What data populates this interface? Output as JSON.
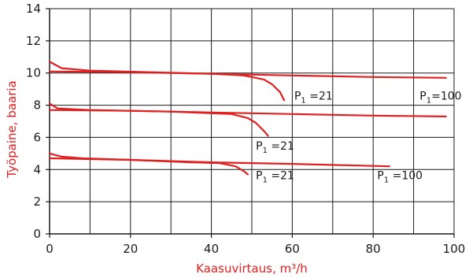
{
  "chart_data": {
    "type": "line",
    "title": "",
    "xlabel": "Kaasuvirtaus, m³/h",
    "ylabel": "Työpaine, baaria",
    "xlim": [
      0,
      100
    ],
    "ylim": [
      0,
      14
    ],
    "xticks": [
      0,
      20,
      40,
      60,
      80,
      100
    ],
    "yticks": [
      0,
      2,
      4,
      6,
      8,
      10,
      12,
      14
    ],
    "x_grid_step": 10,
    "y_grid_step": 2,
    "grid": true,
    "line_color": "#e02020",
    "series": [
      {
        "points": [
          [
            0,
            10.7
          ],
          [
            3,
            10.3
          ],
          [
            10,
            10.15
          ],
          [
            25,
            10.05
          ],
          [
            40,
            9.95
          ],
          [
            48,
            9.85
          ],
          [
            53,
            9.6
          ],
          [
            55,
            9.3
          ],
          [
            57,
            8.8
          ],
          [
            58,
            8.3
          ]
        ]
      },
      {
        "points": [
          [
            0,
            10.1
          ],
          [
            20,
            10.05
          ],
          [
            40,
            9.95
          ],
          [
            60,
            9.85
          ],
          [
            80,
            9.75
          ],
          [
            98,
            9.7
          ]
        ]
      },
      {
        "points": [
          [
            0,
            8.1
          ],
          [
            2,
            7.8
          ],
          [
            10,
            7.7
          ],
          [
            30,
            7.6
          ],
          [
            45,
            7.45
          ],
          [
            49,
            7.2
          ],
          [
            51,
            6.9
          ],
          [
            53,
            6.4
          ],
          [
            54,
            6.1
          ]
        ]
      },
      {
        "points": [
          [
            0,
            7.7
          ],
          [
            20,
            7.65
          ],
          [
            40,
            7.55
          ],
          [
            60,
            7.45
          ],
          [
            80,
            7.35
          ],
          [
            98,
            7.3
          ]
        ]
      },
      {
        "points": [
          [
            0,
            5.0
          ],
          [
            3,
            4.8
          ],
          [
            8,
            4.7
          ],
          [
            20,
            4.6
          ],
          [
            35,
            4.45
          ],
          [
            42,
            4.4
          ],
          [
            46,
            4.2
          ],
          [
            48,
            3.9
          ],
          [
            49,
            3.7
          ]
        ]
      },
      {
        "points": [
          [
            0,
            4.7
          ],
          [
            20,
            4.6
          ],
          [
            40,
            4.45
          ],
          [
            60,
            4.35
          ],
          [
            84,
            4.2
          ]
        ]
      }
    ],
    "annotations": [
      {
        "base": "P",
        "sub": "1",
        "rest": " =21",
        "x": 60.5,
        "y": 8.35
      },
      {
        "base": "P",
        "sub": "1",
        "rest": "=100",
        "x": 91.5,
        "y": 8.35
      },
      {
        "base": "P",
        "sub": "1",
        "rest": " =21",
        "x": 51,
        "y": 5.25
      },
      {
        "base": "P",
        "sub": "1",
        "rest": " =21",
        "x": 51,
        "y": 3.4
      },
      {
        "base": "P",
        "sub": "1",
        "rest": " =100",
        "x": 81,
        "y": 3.4
      }
    ]
  }
}
